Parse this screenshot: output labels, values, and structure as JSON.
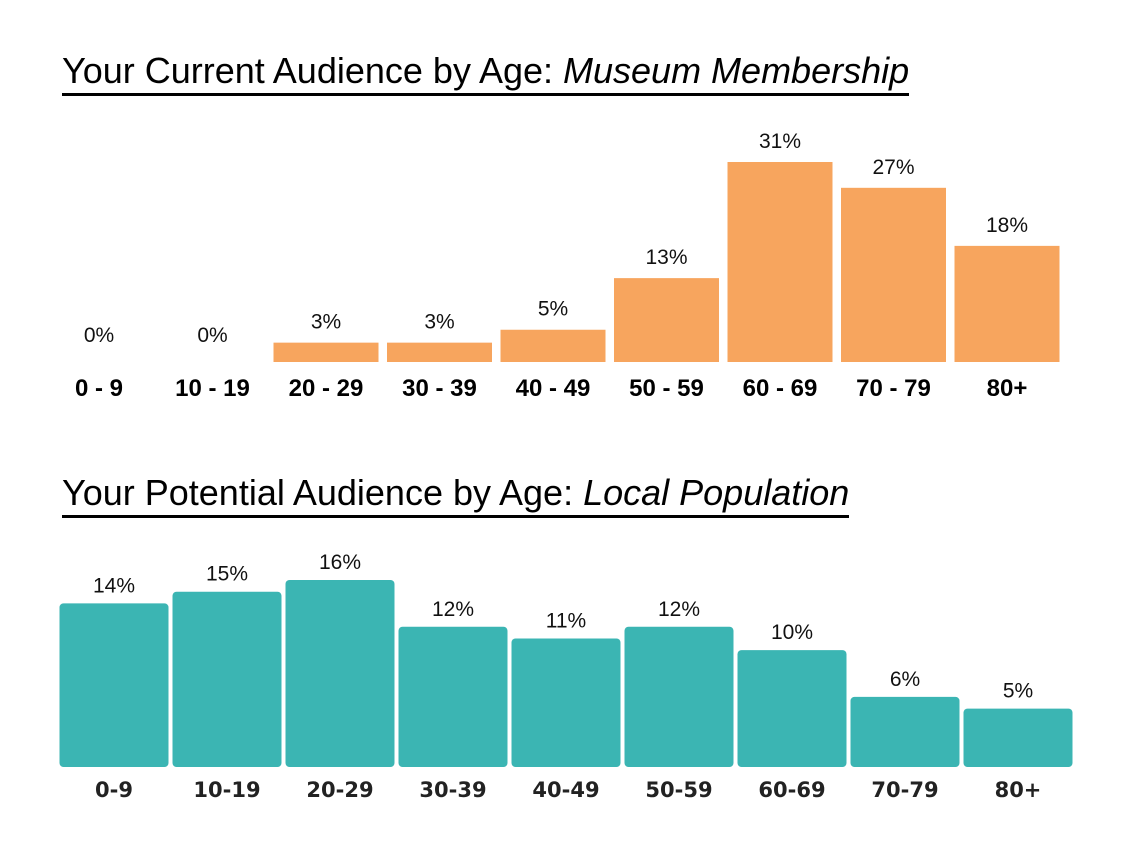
{
  "chart_data": [
    {
      "type": "bar",
      "title": "Your Current Audience by Age: ",
      "title_italic": "Museum Membership",
      "categories": [
        "0 - 9",
        "10 - 19",
        "20 - 29",
        "30 - 39",
        "40 - 49",
        "50 - 59",
        "60 - 69",
        "70 - 79",
        "80+"
      ],
      "values": [
        0,
        0,
        3,
        3,
        5,
        13,
        31,
        27,
        18
      ],
      "value_labels": [
        "0%",
        "0%",
        "3%",
        "3%",
        "5%",
        "13%",
        "31%",
        "27%",
        "18%"
      ],
      "xlabel": "",
      "ylabel": "",
      "ylim": [
        0,
        31
      ],
      "grid": false,
      "color": "#F7A55E"
    },
    {
      "type": "bar",
      "title": "Your Potential Audience by Age: ",
      "title_italic": "Local Population",
      "categories": [
        "0-9",
        "10-19",
        "20-29",
        "30-39",
        "40-49",
        "50-59",
        "60-69",
        "70-79",
        "80+"
      ],
      "values": [
        14,
        15,
        16,
        12,
        11,
        12,
        10,
        6,
        5
      ],
      "value_labels": [
        "14%",
        "15%",
        "16%",
        "12%",
        "11%",
        "12%",
        "10%",
        "6%",
        "5%"
      ],
      "xlabel": "",
      "ylabel": "",
      "ylim": [
        0,
        16
      ],
      "grid": false,
      "color": "#3BB5B3"
    }
  ]
}
